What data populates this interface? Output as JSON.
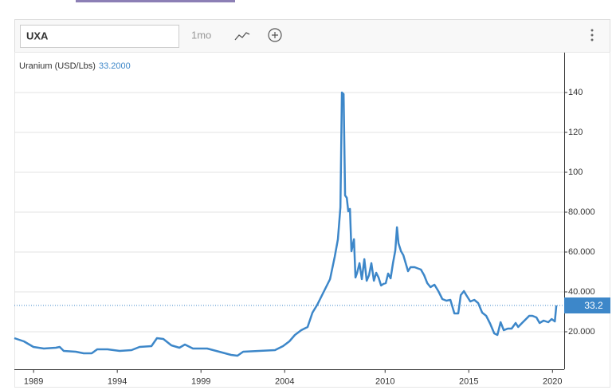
{
  "toolbar": {
    "symbol": "UXA",
    "range": "1mo"
  },
  "chart_data": {
    "type": "line",
    "x": [
      1987.85,
      1988.42,
      1988.99,
      1989.61,
      1990.33,
      1990.56,
      1990.8,
      1991.52,
      1991.99,
      1992.47,
      1992.8,
      1993.42,
      1994.14,
      1994.85,
      1995.33,
      1996.04,
      1996.37,
      1996.75,
      1997.23,
      1997.71,
      1998.04,
      1998.52,
      1999.37,
      2000.09,
      2000.8,
      2001.18,
      2001.52,
      2002.47,
      2003.42,
      2003.9,
      2004.28,
      2004.61,
      2004.99,
      2005.37,
      2005.66,
      2005.95,
      2006.33,
      2006.71,
      2006.99,
      2007.18,
      2007.33,
      2007.42,
      2007.52,
      2007.61,
      2007.71,
      2007.8,
      2007.9,
      2007.99,
      2008.14,
      2008.23,
      2008.33,
      2008.47,
      2008.61,
      2008.76,
      2008.9,
      2009.04,
      2009.18,
      2009.33,
      2009.47,
      2009.61,
      2009.76,
      2009.9,
      2010.04,
      2010.18,
      2010.33,
      2010.47,
      2010.61,
      2010.71,
      2010.8,
      2010.95,
      2011.09,
      2011.23,
      2011.37,
      2011.52,
      2011.76,
      2012.14,
      2012.33,
      2012.52,
      2012.71,
      2012.95,
      2013.18,
      2013.42,
      2013.66,
      2013.9,
      2014.14,
      2014.37,
      2014.52,
      2014.71,
      2014.85,
      2015.09,
      2015.33,
      2015.56,
      2015.8,
      2016.04,
      2016.28,
      2016.52,
      2016.71,
      2016.9,
      2017.09,
      2017.33,
      2017.56,
      2017.8,
      2017.95,
      2018.18,
      2018.42,
      2018.61,
      2018.8,
      2019.04,
      2019.23,
      2019.47,
      2019.75,
      2019.95,
      2020.14,
      2020.23
    ],
    "series": [
      {
        "name": "Uranium (USD/Lbs)",
        "color": "#3d87c9",
        "values": [
          16.8,
          15.2,
          12.4,
          11.6,
          12,
          12.4,
          10.4,
          10,
          9.2,
          9.2,
          11.2,
          11.2,
          10.4,
          10.8,
          12.4,
          12.8,
          16.8,
          16.4,
          13.2,
          12,
          13.6,
          11.6,
          11.6,
          10,
          8.4,
          8,
          10,
          10.4,
          10.8,
          12.8,
          15.2,
          18.4,
          20.8,
          22.4,
          29.6,
          33.6,
          40,
          46.4,
          57.6,
          66.4,
          82.4,
          140,
          139.2,
          88.4,
          87.2,
          80.4,
          81.6,
          60.4,
          66.4,
          47.2,
          49.6,
          54.4,
          46.4,
          56.4,
          45.6,
          48.4,
          54.4,
          45.6,
          49.6,
          47.2,
          43.2,
          44,
          44.4,
          49.2,
          46.8,
          54.4,
          60.8,
          72.4,
          64.4,
          60.4,
          58.4,
          54.4,
          50.4,
          52.4,
          52.4,
          51.2,
          48.4,
          44.4,
          42.4,
          43.6,
          40.4,
          36.4,
          35.6,
          36,
          29.2,
          29.2,
          38.4,
          40.4,
          38.4,
          35.2,
          36,
          34.4,
          29.6,
          28,
          24,
          19.2,
          18.4,
          24.8,
          20.8,
          21.6,
          21.6,
          24.4,
          22.4,
          24.4,
          26.4,
          28,
          28,
          27.2,
          24.4,
          25.6,
          24.8,
          26.4,
          25.2,
          33.2
        ]
      }
    ],
    "header_value": {
      "value": 33.2,
      "label": "33.2000"
    },
    "last_value": {
      "value": 33.2,
      "label": "33.2"
    },
    "xlim": [
      1987.85,
      2020.7
    ],
    "xticks": [
      1989,
      1994,
      1999,
      2004,
      2010,
      2015,
      2020
    ],
    "ylim": [
      1,
      160
    ],
    "yticks": [
      {
        "value": 20,
        "label": "20.000"
      },
      {
        "value": 40,
        "label": "40.000"
      },
      {
        "value": 60,
        "label": "60.000"
      },
      {
        "value": 80,
        "label": "80.000"
      },
      100,
      120,
      140
    ],
    "grid": true
  }
}
